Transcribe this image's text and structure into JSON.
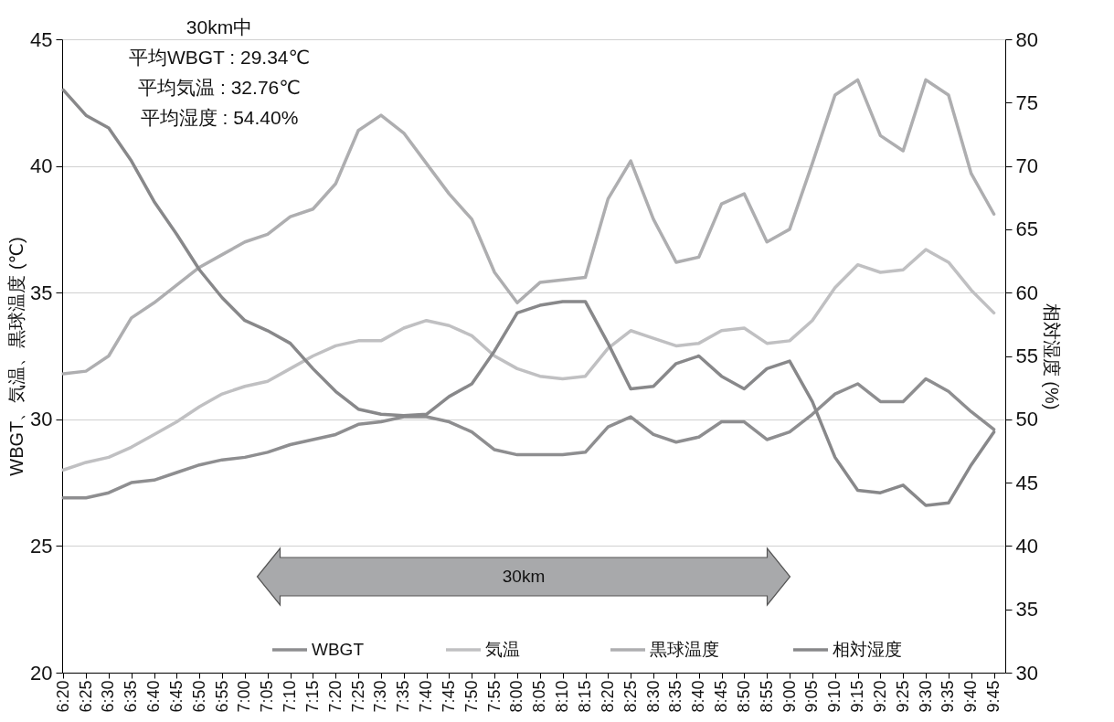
{
  "chart_data": {
    "type": "line",
    "ylabel": "WBGT、気温、黒球温度 (℃)",
    "y2label": "相対湿度 (%)",
    "annotations": [
      "30km中",
      "平均WBGT : 29.34℃",
      "平均気温 : 32.76℃",
      "平均湿度 : 54.40%",
      "30km"
    ],
    "categories": [
      "6:20",
      "6:25",
      "6:30",
      "6:35",
      "6:40",
      "6:45",
      "6:50",
      "6:55",
      "7:00",
      "7:05",
      "7:10",
      "7:15",
      "7:20",
      "7:25",
      "7:30",
      "7:35",
      "7:40",
      "7:45",
      "7:50",
      "7:55",
      "8:00",
      "8:05",
      "8:10",
      "8:15",
      "8:20",
      "8:25",
      "8:30",
      "8:35",
      "8:40",
      "8:45",
      "8:50",
      "8:55",
      "9:00",
      "9:05",
      "9:10",
      "9:15",
      "9:20",
      "9:25",
      "9:30",
      "9:35",
      "9:40",
      "9:45"
    ],
    "series": [
      {
        "name": "WBGT",
        "color": "#8e8e90",
        "values": [
          26.9,
          26.9,
          27.1,
          27.5,
          27.6,
          27.9,
          28.2,
          28.4,
          28.5,
          28.7,
          29.0,
          29.2,
          29.4,
          29.8,
          29.9,
          30.1,
          30.1,
          29.9,
          29.5,
          28.8,
          28.6,
          28.6,
          28.6,
          28.7,
          29.7,
          30.1,
          29.4,
          29.1,
          29.3,
          29.9,
          29.9,
          29.2,
          29.5,
          30.2,
          31.0,
          31.4,
          30.7,
          30.7,
          31.6,
          31.1,
          30.3,
          29.6
        ]
      },
      {
        "name": "気温",
        "color": "#c0c0c2",
        "values": [
          28.0,
          28.3,
          28.5,
          28.9,
          29.4,
          29.9,
          30.5,
          31.0,
          31.3,
          31.5,
          32.0,
          32.5,
          32.9,
          33.1,
          33.1,
          33.6,
          33.9,
          33.7,
          33.3,
          32.5,
          32.0,
          31.7,
          31.6,
          31.7,
          32.8,
          33.5,
          33.2,
          32.9,
          33.0,
          33.5,
          33.6,
          33.0,
          33.1,
          33.9,
          35.2,
          36.1,
          35.8,
          35.9,
          36.7,
          36.2,
          35.1,
          34.2
        ]
      },
      {
        "name": "黒球温度",
        "color": "#aeaeb0",
        "values": [
          31.8,
          31.9,
          32.5,
          34.0,
          34.6,
          35.3,
          36.0,
          36.5,
          37.0,
          37.3,
          38.0,
          38.3,
          39.3,
          41.4,
          42.0,
          41.3,
          40.1,
          38.9,
          37.9,
          35.8,
          34.6,
          35.4,
          35.5,
          35.6,
          38.7,
          40.2,
          37.9,
          36.2,
          36.4,
          38.5,
          38.9,
          37.0,
          37.5,
          40.1,
          42.8,
          43.4,
          41.2,
          40.6,
          43.4,
          42.8,
          39.7,
          38.1
        ]
      },
      {
        "name": "相対湿度",
        "color": "#88888a",
        "axis": "y2",
        "values": [
          76,
          74,
          73,
          70.4,
          67.2,
          64.6,
          61.8,
          59.6,
          57.8,
          57,
          56,
          54,
          52.2,
          50.8,
          50.4,
          50.3,
          50.4,
          51.8,
          52.8,
          55.4,
          58.4,
          59,
          59.3,
          59.3,
          56,
          52.4,
          52.6,
          54.4,
          55,
          53.4,
          52.4,
          54,
          54.6,
          51.4,
          47,
          44.4,
          44.2,
          44.8,
          43.2,
          43.4,
          46.4,
          49
        ]
      }
    ],
    "ylim": [
      20,
      45
    ],
    "yticks": [
      20,
      25,
      30,
      35,
      40,
      45
    ],
    "y2lim": [
      30,
      80
    ],
    "y2ticks": [
      30,
      35,
      40,
      45,
      50,
      55,
      60,
      65,
      70,
      75,
      80
    ],
    "grid": "y",
    "legend": "bottom",
    "line_style": "solid",
    "marker": "none"
  }
}
